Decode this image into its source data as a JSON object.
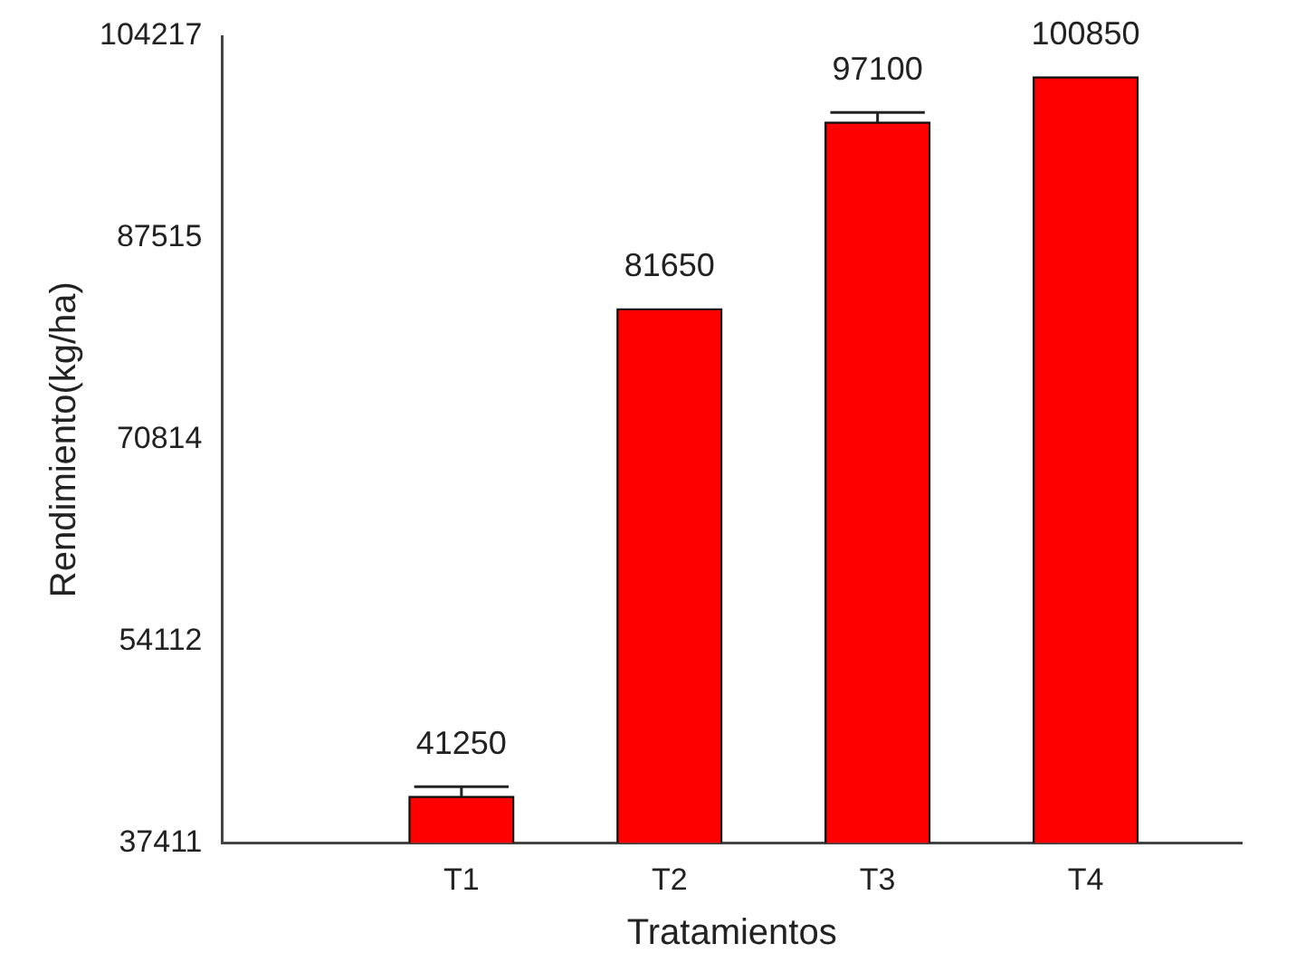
{
  "chart_data": {
    "type": "bar",
    "xlabel": "Tratamientos",
    "ylabel": "Rendimiento(kg/ha)",
    "categories": [
      "T1",
      "T2",
      "T3",
      "T4"
    ],
    "values": [
      41250,
      81650,
      97100,
      100850
    ],
    "errors": [
      [
        41250,
        42050
      ],
      null,
      [
        97100,
        97900
      ],
      null
    ],
    "color": "#ff0000",
    "ylim": [
      37411,
      104217
    ],
    "yticks": [
      37411,
      54112,
      70814,
      87515,
      104217
    ],
    "grid": false,
    "legend": false,
    "data_labels": true
  }
}
